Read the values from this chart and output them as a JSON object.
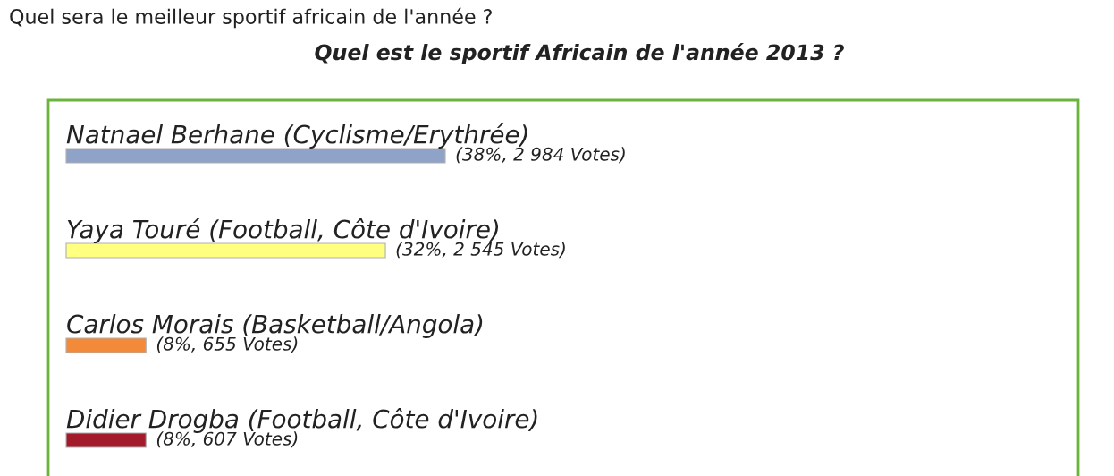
{
  "chart_data": {
    "type": "bar",
    "orientation": "horizontal",
    "title": "Quel sera le meilleur sportif africain de l'année ?",
    "subtitle": "Quel est le sportif Africain de l'année 2013 ?",
    "categories": [
      "Natnael Berhane (Cyclisme/Erythrée)",
      "Yaya Touré (Football, Côte d'Ivoire)",
      "Carlos Morais (Basketball/Angola)",
      "Didier Drogba (Football, Côte d'Ivoire)"
    ],
    "values": [
      38,
      32,
      8,
      8
    ],
    "value_labels": [
      "(38%, 2 984 Votes)",
      "(32%, 2 545 Votes)",
      "(8%, 655 Votes)",
      "(8%, 607 Votes)"
    ],
    "colors": [
      "#8fa2c8",
      "#ffff80",
      "#f28a3a",
      "#a31b2a"
    ],
    "legend": false
  }
}
